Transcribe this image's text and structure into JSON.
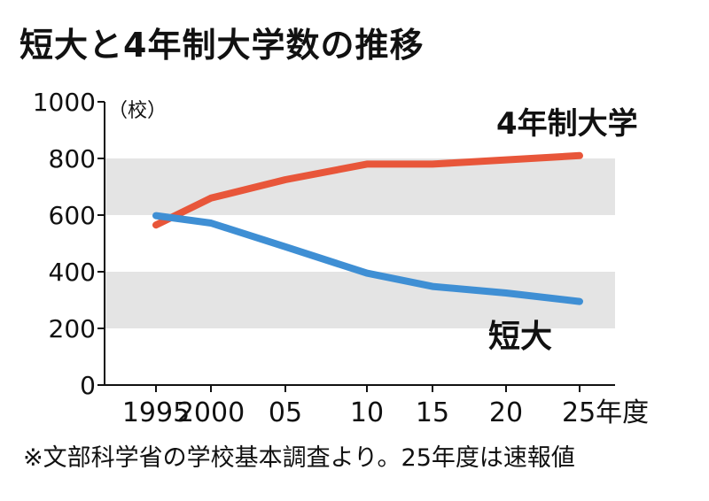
{
  "title": "短大と4年制大学数の推移",
  "footnote": "※文部科学省の学校基本調査より。25年度は速報値",
  "colors": {
    "univ": "#e8563a",
    "college": "#3f8fd4",
    "band": "#e4e4e4"
  },
  "chart_data": {
    "type": "line",
    "title": "短大と4年制大学数の推移",
    "ylabel": "（校）",
    "xlabel": "年度",
    "ylim": [
      0,
      1000
    ],
    "yticks": [
      "0",
      "200",
      "400",
      "600",
      "800",
      "1000"
    ],
    "categories": [
      "1995",
      "2000",
      "05",
      "10",
      "15",
      "20",
      "25年度"
    ],
    "series": [
      {
        "name": "4年制大学",
        "values": [
          565,
          660,
          725,
          780,
          780,
          795,
          810
        ]
      },
      {
        "name": "短大",
        "values": [
          598,
          572,
          488,
          395,
          348,
          325,
          295
        ]
      }
    ]
  }
}
